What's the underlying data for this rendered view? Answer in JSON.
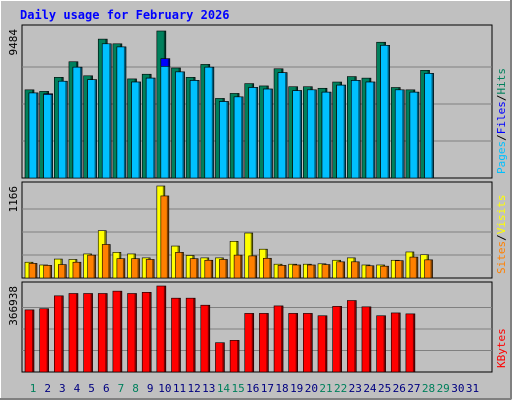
{
  "title": "Daily usage for February 2026",
  "colors": {
    "background": "#c0c0c0",
    "hits": "#00805c",
    "files": "#0000ff",
    "pages": "#00c0ff",
    "visits": "#ffff00",
    "sites": "#ff8000",
    "kbytes": "#ff0000",
    "title": "#0000ff",
    "weekend_label": "#00805c",
    "day_label": "#000080"
  },
  "chart_data": [
    {
      "type": "bar",
      "panel": "hits-files-pages",
      "ymax_label": "9484",
      "ymax": 9484,
      "legend": [
        {
          "label": "Pages",
          "color": "#00c0ff"
        },
        {
          "label": "Files",
          "color": "#0000ff"
        },
        {
          "label": "Hits",
          "color": "#00805c"
        }
      ],
      "categories": [
        "1",
        "2",
        "3",
        "4",
        "5",
        "6",
        "7",
        "8",
        "9",
        "10",
        "11",
        "12",
        "13",
        "14",
        "15",
        "16",
        "17",
        "18",
        "19",
        "20",
        "21",
        "22",
        "23",
        "24",
        "25",
        "26",
        "27",
        "28",
        "29",
        "30",
        "31"
      ],
      "series": [
        {
          "name": "Hits",
          "values": [
            5650,
            5550,
            6450,
            7450,
            6550,
            8900,
            8600,
            6350,
            6650,
            9420,
            7050,
            6450,
            7280,
            5100,
            5420,
            6050,
            5900,
            7000,
            5850,
            5850,
            5750,
            6150,
            6500,
            6400,
            8700,
            5800,
            5650,
            6900,
            null,
            null,
            null
          ]
        },
        {
          "name": "Files",
          "values": [
            5450,
            5400,
            6200,
            7100,
            6300,
            8600,
            8400,
            6150,
            6400,
            7650,
            6800,
            6250,
            7100,
            4900,
            5200,
            5800,
            5700,
            6750,
            5600,
            5650,
            5500,
            5950,
            6250,
            6150,
            8500,
            5650,
            5500,
            6700,
            null,
            null,
            null
          ]
        },
        {
          "name": "Pages",
          "values": [
            5450,
            5350,
            6200,
            7100,
            6300,
            8600,
            8400,
            6150,
            6400,
            7150,
            6800,
            6250,
            7100,
            4900,
            5200,
            5800,
            5700,
            6750,
            5600,
            5650,
            5500,
            5950,
            6250,
            6150,
            8500,
            5650,
            5500,
            6700,
            null,
            null,
            null
          ]
        }
      ]
    },
    {
      "type": "bar",
      "panel": "visits-sites",
      "ymax_label": "1166",
      "ymax": 1166,
      "legend": [
        {
          "label": "Sites",
          "color": "#ff8000"
        },
        {
          "label": "Visits",
          "color": "#ffff00"
        }
      ],
      "categories": [
        "1",
        "2",
        "3",
        "4",
        "5",
        "6",
        "7",
        "8",
        "9",
        "10",
        "11",
        "12",
        "13",
        "14",
        "15",
        "16",
        "17",
        "18",
        "19",
        "20",
        "21",
        "22",
        "23",
        "24",
        "25",
        "26",
        "27",
        "28",
        "29",
        "30",
        "31"
      ],
      "series": [
        {
          "name": "Visits",
          "values": [
            200,
            165,
            240,
            235,
            305,
            600,
            325,
            305,
            255,
            1166,
            405,
            285,
            255,
            255,
            465,
            570,
            365,
            175,
            175,
            175,
            180,
            225,
            255,
            165,
            165,
            225,
            330,
            295,
            null,
            null,
            null
          ]
        },
        {
          "name": "Sites",
          "values": [
            185,
            160,
            170,
            200,
            290,
            425,
            245,
            245,
            235,
            1040,
            325,
            245,
            225,
            235,
            290,
            280,
            250,
            160,
            165,
            165,
            170,
            205,
            205,
            155,
            150,
            220,
            265,
            230,
            null,
            null,
            null
          ]
        }
      ]
    },
    {
      "type": "bar",
      "panel": "kbytes",
      "ymax_label": "366938",
      "ymax": 366938,
      "legend": [
        {
          "label": "KBytes",
          "color": "#ff0000"
        }
      ],
      "categories": [
        "1",
        "2",
        "3",
        "4",
        "5",
        "6",
        "7",
        "8",
        "9",
        "10",
        "11",
        "12",
        "13",
        "14",
        "15",
        "16",
        "17",
        "18",
        "19",
        "20",
        "21",
        "22",
        "23",
        "24",
        "25",
        "26",
        "27",
        "28",
        "29",
        "30",
        "31"
      ],
      "series": [
        {
          "name": "KBytes",
          "values": [
            265000,
            270000,
            325000,
            335000,
            335000,
            335000,
            345000,
            335000,
            340000,
            366938,
            315000,
            315000,
            285000,
            125000,
            135000,
            250000,
            250000,
            282000,
            250000,
            250000,
            240000,
            280000,
            305000,
            278000,
            240000,
            252000,
            248000,
            null,
            null,
            null,
            null
          ]
        }
      ]
    }
  ]
}
